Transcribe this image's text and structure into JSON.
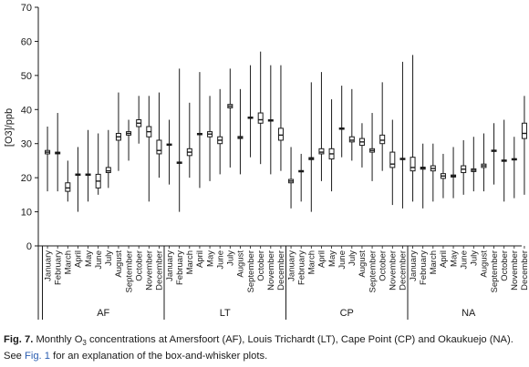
{
  "chart_data": {
    "type": "box",
    "ylabel": "[O3]/ppb",
    "ylim": [
      0,
      70
    ],
    "yticks": [
      0,
      10,
      20,
      30,
      40,
      50,
      60,
      70
    ],
    "months": [
      "January",
      "February",
      "March",
      "April",
      "May",
      "June",
      "July",
      "August",
      "September",
      "October",
      "November",
      "December"
    ],
    "groups": [
      {
        "label": "AF",
        "boxes": [
          {
            "min": 16,
            "q1": 27,
            "median": 27.5,
            "q3": 28,
            "max": 35
          },
          {
            "min": 16,
            "q1": 27,
            "median": 27.2,
            "q3": 27.5,
            "max": 39
          },
          {
            "min": 13,
            "q1": 16,
            "median": 17,
            "q3": 18.5,
            "max": 25
          },
          {
            "min": 10,
            "q1": 20.7,
            "median": 20.9,
            "q3": 21.1,
            "max": 29
          },
          {
            "min": 13,
            "q1": 20.7,
            "median": 20.9,
            "q3": 21.1,
            "max": 34
          },
          {
            "min": 15,
            "q1": 17,
            "median": 19,
            "q3": 21,
            "max": 33
          },
          {
            "min": 17,
            "q1": 21.5,
            "median": 22,
            "q3": 23,
            "max": 34
          },
          {
            "min": 22,
            "q1": 31,
            "median": 32,
            "q3": 33,
            "max": 45
          },
          {
            "min": 25,
            "q1": 32.5,
            "median": 33,
            "q3": 33.5,
            "max": 37
          },
          {
            "min": 30,
            "q1": 35,
            "median": 36,
            "q3": 37,
            "max": 44
          },
          {
            "min": 13,
            "q1": 32,
            "median": 33.5,
            "q3": 35,
            "max": 44
          },
          {
            "min": 20,
            "q1": 27,
            "median": 28,
            "q3": 31,
            "max": 45
          }
        ]
      },
      {
        "label": "LT",
        "boxes": [
          {
            "min": 18,
            "q1": 29.5,
            "median": 29.7,
            "q3": 29.9,
            "max": 37
          },
          {
            "min": 10,
            "q1": 24.2,
            "median": 24.4,
            "q3": 24.6,
            "max": 52
          },
          {
            "min": 20,
            "q1": 26.5,
            "median": 27.5,
            "q3": 28.5,
            "max": 42
          },
          {
            "min": 17,
            "q1": 32.6,
            "median": 32.8,
            "q3": 33,
            "max": 51
          },
          {
            "min": 19,
            "q1": 32,
            "median": 32.8,
            "q3": 33.5,
            "max": 44
          },
          {
            "min": 21,
            "q1": 30,
            "median": 31,
            "q3": 32,
            "max": 46
          },
          {
            "min": 23,
            "q1": 40.5,
            "median": 41,
            "q3": 41.5,
            "max": 52
          },
          {
            "min": 21,
            "q1": 31.5,
            "median": 31.8,
            "q3": 32.1,
            "max": 46
          },
          {
            "min": 26,
            "q1": 37.4,
            "median": 37.6,
            "q3": 37.8,
            "max": 53
          },
          {
            "min": 24,
            "q1": 36,
            "median": 37,
            "q3": 39,
            "max": 57
          },
          {
            "min": 21,
            "q1": 36.6,
            "median": 36.8,
            "q3": 37,
            "max": 53
          },
          {
            "min": 22,
            "q1": 31,
            "median": 32.5,
            "q3": 34.5,
            "max": 53
          }
        ]
      },
      {
        "label": "CP",
        "boxes": [
          {
            "min": 11,
            "q1": 18.5,
            "median": 19,
            "q3": 19.5,
            "max": 29
          },
          {
            "min": 13,
            "q1": 21.7,
            "median": 21.9,
            "q3": 22.1,
            "max": 27
          },
          {
            "min": 10,
            "q1": 25.3,
            "median": 25.6,
            "q3": 25.9,
            "max": 48
          },
          {
            "min": 19,
            "q1": 27,
            "median": 27.5,
            "q3": 28.5,
            "max": 51
          },
          {
            "min": 16,
            "q1": 25.5,
            "median": 27,
            "q3": 28.5,
            "max": 43
          },
          {
            "min": 26,
            "q1": 34.2,
            "median": 34.4,
            "q3": 34.6,
            "max": 47
          },
          {
            "min": 25,
            "q1": 30.5,
            "median": 31,
            "q3": 32,
            "max": 46
          },
          {
            "min": 23,
            "q1": 29.5,
            "median": 30.5,
            "q3": 31.5,
            "max": 36
          },
          {
            "min": 19,
            "q1": 27.5,
            "median": 28,
            "q3": 28.5,
            "max": 39
          },
          {
            "min": 22,
            "q1": 30,
            "median": 31,
            "q3": 32.5,
            "max": 48
          },
          {
            "min": 12,
            "q1": 23,
            "median": 24,
            "q3": 27.5,
            "max": 37
          },
          {
            "min": 11,
            "q1": 25.3,
            "median": 25.5,
            "q3": 25.7,
            "max": 54
          }
        ]
      },
      {
        "label": "NA",
        "boxes": [
          {
            "min": 13,
            "q1": 22,
            "median": 23,
            "q3": 26,
            "max": 56
          },
          {
            "min": 11,
            "q1": 22.5,
            "median": 22.8,
            "q3": 23.1,
            "max": 30
          },
          {
            "min": 13,
            "q1": 22,
            "median": 22.7,
            "q3": 23.5,
            "max": 30
          },
          {
            "min": 14,
            "q1": 19.8,
            "median": 20.5,
            "q3": 21.2,
            "max": 27
          },
          {
            "min": 14,
            "q1": 20.2,
            "median": 20.5,
            "q3": 20.8,
            "max": 29
          },
          {
            "min": 15,
            "q1": 21.5,
            "median": 22.5,
            "q3": 23.5,
            "max": 31
          },
          {
            "min": 16,
            "q1": 21.8,
            "median": 22.2,
            "q3": 22.6,
            "max": 32
          },
          {
            "min": 16,
            "q1": 23,
            "median": 23.5,
            "q3": 24,
            "max": 33
          },
          {
            "min": 18,
            "q1": 27.7,
            "median": 27.9,
            "q3": 28.1,
            "max": 36
          },
          {
            "min": 13,
            "q1": 24.8,
            "median": 25,
            "q3": 25.2,
            "max": 37
          },
          {
            "min": 14,
            "q1": 25.2,
            "median": 25.4,
            "q3": 25.6,
            "max": 32
          },
          {
            "min": 15,
            "q1": 31.5,
            "median": 33,
            "q3": 36,
            "max": 44
          }
        ]
      }
    ]
  },
  "caption": {
    "fig_label": "Fig. 7.",
    "text_part1": "Monthly O",
    "text_sub": "3",
    "text_part2": " concentrations at Amersfoort (AF), Louis Trichardt (LT), Cape Point (CP) and Okaukuejo (NA).",
    "text_see": "See",
    "link_text": "Fig. 1",
    "text_part3": " for an explanation of the box-and-whisker plots."
  }
}
